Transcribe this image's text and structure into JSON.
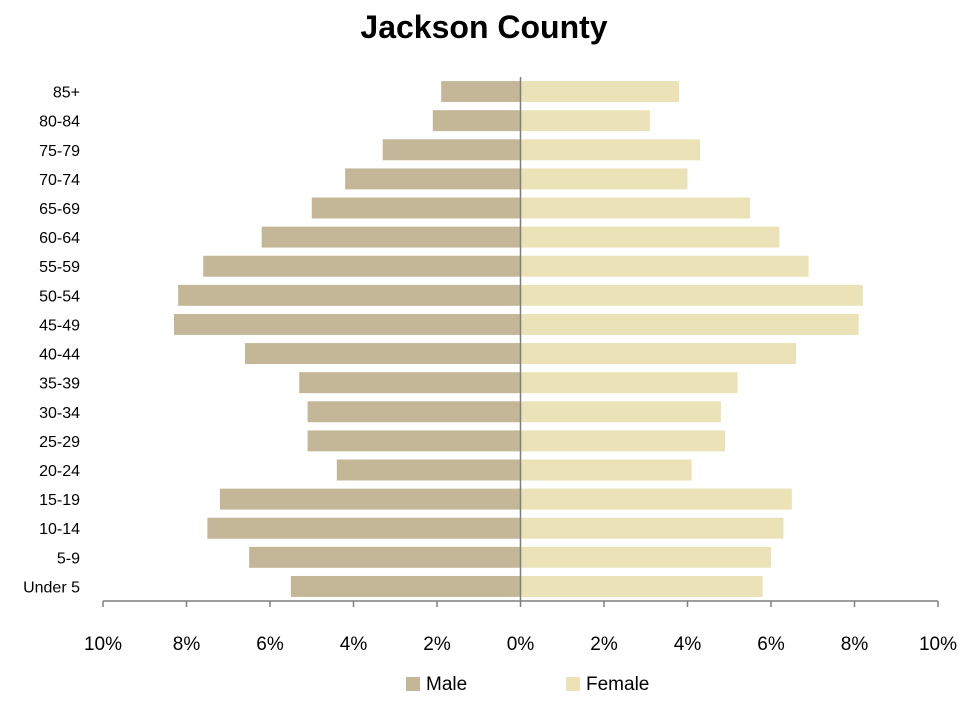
{
  "chart_data": {
    "type": "bar",
    "orientation": "horizontal",
    "subtype": "population-pyramid",
    "title": "Jackson County",
    "xlabel": "",
    "ylabel": "",
    "categories": [
      "85+",
      "80-84",
      "75-79",
      "70-74",
      "65-69",
      "60-64",
      "55-59",
      "50-54",
      "45-49",
      "40-44",
      "35-39",
      "30-34",
      "25-29",
      "20-24",
      "15-19",
      "10-14",
      "5-9",
      "Under 5"
    ],
    "series": [
      {
        "name": "Male",
        "color": "#c4b797",
        "values": [
          1.9,
          2.1,
          3.3,
          4.2,
          5.0,
          6.2,
          7.6,
          8.2,
          8.3,
          6.6,
          5.3,
          5.1,
          5.1,
          4.4,
          7.2,
          7.5,
          6.5,
          5.5
        ]
      },
      {
        "name": "Female",
        "color": "#ebe3b7",
        "values": [
          3.8,
          3.1,
          4.3,
          4.0,
          5.5,
          6.2,
          6.9,
          8.2,
          8.1,
          6.6,
          5.2,
          4.8,
          4.9,
          4.1,
          6.5,
          6.3,
          6.0,
          5.8
        ]
      }
    ],
    "xlim": [
      -10,
      10
    ],
    "x_ticks": [
      -10,
      -8,
      -6,
      -4,
      -2,
      0,
      2,
      4,
      6,
      8,
      10
    ],
    "x_tick_labels": [
      "10%",
      "8%",
      "6%",
      "4%",
      "2%",
      "0%",
      "2%",
      "4%",
      "6%",
      "8%",
      "10%"
    ],
    "grid": false,
    "legend": {
      "position": "bottom",
      "entries": [
        "Male",
        "Female"
      ]
    }
  }
}
